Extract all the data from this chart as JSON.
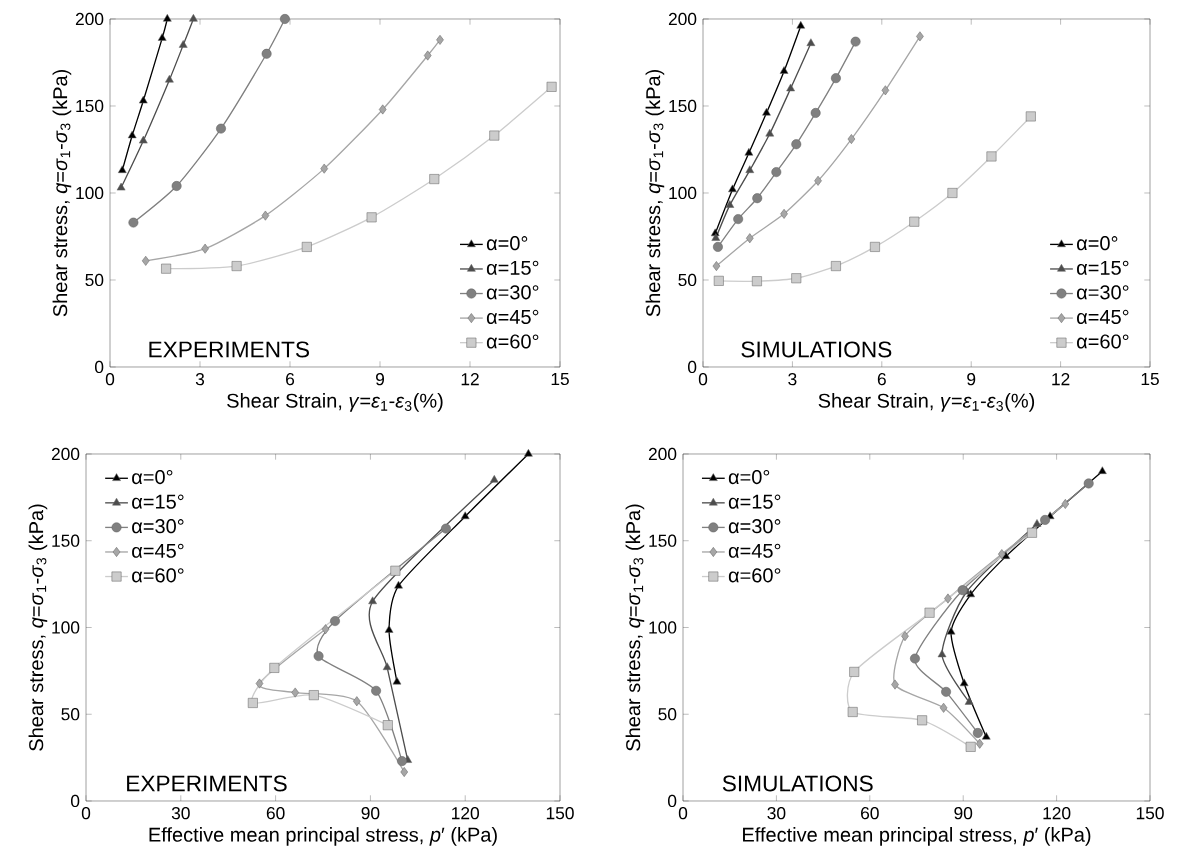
{
  "chart_data": [
    {
      "type": "line",
      "xlabel": "Shear Strain, *γ*=*ε*$_{1}$-*ε*$_{3}$(%)",
      "ylabel": "Shear stress, *q*=*σ*$_{1}$-*σ*$_{3}$ (kPa)",
      "xlim": [
        0,
        15
      ],
      "ylim": [
        0,
        200
      ],
      "xticks": [
        0,
        3,
        6,
        9,
        12,
        15
      ],
      "yticks": [
        0,
        50,
        100,
        150,
        200
      ],
      "legend": "bottom right",
      "annotations": [
        "EXPERIMENTS"
      ],
      "series": [
        {
          "name": "α=0°",
          "color": "#000000",
          "marker": "triangle",
          "x": [
            0.41,
            0.74,
            1.11,
            1.74,
            1.91
          ],
          "values": [
            113,
            133,
            153,
            189,
            200
          ]
        },
        {
          "name": "α=15°",
          "color": "#4d4d4d",
          "marker": "triangle",
          "x": [
            0.37,
            1.11,
            1.98,
            2.44,
            2.78
          ],
          "values": [
            103,
            130,
            165,
            185,
            200
          ]
        },
        {
          "name": "α=30°",
          "color": "#808080",
          "marker": "circle",
          "x": [
            0.78,
            2.22,
            3.7,
            5.22,
            5.83
          ],
          "values": [
            83,
            104,
            137,
            180,
            200
          ]
        },
        {
          "name": "α=45°",
          "color": "#a6a6a6",
          "marker": "diamond",
          "x": [
            1.19,
            3.17,
            5.18,
            7.14,
            9.09,
            10.59,
            11.0
          ],
          "values": [
            61,
            68,
            87,
            114,
            148,
            179,
            188
          ]
        },
        {
          "name": "α=60°",
          "color": "#cccccc",
          "marker": "square",
          "x": [
            1.87,
            4.22,
            6.56,
            8.72,
            10.81,
            12.81,
            14.72
          ],
          "values": [
            56.5,
            58,
            69,
            86,
            108,
            133,
            161
          ]
        }
      ]
    },
    {
      "type": "line",
      "xlabel": "Shear Strain, *γ*=*ε*$_{1}$-*ε*$_{3}$(%)",
      "ylabel": "Shear stress, *q*=*σ*$_{1}$-*σ*$_{3}$ (kPa)",
      "xlim": [
        0,
        15
      ],
      "ylim": [
        0,
        200
      ],
      "xticks": [
        0,
        3,
        6,
        9,
        12,
        15
      ],
      "yticks": [
        0,
        50,
        100,
        150,
        200
      ],
      "legend": "bottom right",
      "annotations": [
        "SIMULATIONS"
      ],
      "series": [
        {
          "name": "α=0°",
          "color": "#000000",
          "marker": "triangle",
          "x": [
            0.41,
            0.99,
            1.54,
            2.13,
            2.72,
            3.28
          ],
          "values": [
            76.7,
            102,
            123,
            146,
            170,
            196
          ]
        },
        {
          "name": "α=15°",
          "color": "#4d4d4d",
          "marker": "triangle",
          "x": [
            0.43,
            0.9,
            1.57,
            2.24,
            2.94,
            3.62
          ],
          "values": [
            74,
            93,
            113,
            134,
            160,
            186
          ]
        },
        {
          "name": "α=30°",
          "color": "#808080",
          "marker": "circle",
          "x": [
            0.5,
            1.18,
            1.82,
            2.46,
            3.13,
            3.78,
            4.46,
            5.12
          ],
          "values": [
            69,
            85,
            97,
            112,
            128,
            146,
            166,
            187
          ]
        },
        {
          "name": "α=45°",
          "color": "#a6a6a6",
          "marker": "diamond",
          "x": [
            0.45,
            1.57,
            2.72,
            3.86,
            4.98,
            6.12,
            7.28
          ],
          "values": [
            58,
            74,
            88,
            107,
            131,
            159,
            190
          ]
        },
        {
          "name": "α=60°",
          "color": "#cccccc",
          "marker": "square",
          "x": [
            0.53,
            1.81,
            3.13,
            4.46,
            5.77,
            7.09,
            8.37,
            9.68,
            11.0
          ],
          "values": [
            49.5,
            49.3,
            51,
            58,
            69,
            83.5,
            100,
            121,
            144
          ]
        }
      ]
    },
    {
      "type": "line",
      "xlabel": "Effective mean principal stress, *p*′ (kPa)",
      "ylabel": "Shear stress, *q*=*σ*$_{1}$-*σ*$_{3}$ (kPa)",
      "xlim": [
        0,
        150
      ],
      "ylim": [
        0,
        200
      ],
      "xticks": [
        0,
        30,
        60,
        90,
        120,
        150
      ],
      "yticks": [
        0,
        50,
        100,
        150,
        200
      ],
      "legend": "top left",
      "annotations": [
        "EXPERIMENTS"
      ],
      "series": [
        {
          "name": "α=0°",
          "color": "#000000",
          "marker": "triangle",
          "x": [
            98.4,
            95.9,
            98.9,
            120,
            140
          ],
          "values": [
            68.7,
            98.5,
            124,
            164,
            200
          ]
        },
        {
          "name": "α=15°",
          "color": "#4d4d4d",
          "marker": "triangle",
          "x": [
            101.8,
            95.3,
            90.7,
            129.2
          ],
          "values": [
            23.5,
            77,
            115,
            185
          ]
        },
        {
          "name": "α=30°",
          "color": "#808080",
          "marker": "circle",
          "x": [
            100,
            91.8,
            73.6,
            78.8,
            113.9
          ],
          "values": [
            23,
            63.5,
            83.5,
            103.7,
            157
          ]
        },
        {
          "name": "α=45°",
          "color": "#a6a6a6",
          "marker": "diamond",
          "x": [
            100.7,
            85.7,
            66.2,
            54.9,
            75.8
          ],
          "values": [
            16.7,
            57.5,
            62.5,
            67.7,
            99
          ]
        },
        {
          "name": "α=60°",
          "color": "#cccccc",
          "marker": "square",
          "x": [
            95.5,
            72.1,
            52.8,
            59.6,
            97.9
          ],
          "values": [
            43.7,
            61,
            56.5,
            76.7,
            132.7
          ]
        }
      ]
    },
    {
      "type": "line",
      "xlabel": "Effective mean principal stress, *p*′ (kPa)",
      "ylabel": "Shear stress, *q*=*σ*$_{1}$-*σ*$_{3}$ (kPa)",
      "xlim": [
        0,
        150
      ],
      "ylim": [
        0,
        200
      ],
      "xticks": [
        0,
        30,
        60,
        90,
        120,
        150
      ],
      "yticks": [
        0,
        50,
        100,
        150,
        200
      ],
      "legend": "top left",
      "annotations": [
        "SIMULATIONS"
      ],
      "series": [
        {
          "name": "α=0°",
          "color": "#000000",
          "marker": "triangle",
          "x": [
            97.4,
            90.3,
            86.1,
            92.4,
            103.7,
            117.9,
            134.7
          ],
          "values": [
            36.9,
            67.7,
            97.5,
            119,
            141,
            164,
            190
          ]
        },
        {
          "name": "α=15°",
          "color": "#4d4d4d",
          "marker": "triangle",
          "x": [
            91.9,
            83.2,
            91.1,
            113.7
          ],
          "values": [
            57,
            84.4,
            120.6,
            159.6
          ]
        },
        {
          "name": "α=30°",
          "color": "#808080",
          "marker": "circle",
          "x": [
            94.7,
            84.5,
            74.5,
            89.8,
            116.3,
            130.3
          ],
          "values": [
            39.2,
            62.9,
            82.1,
            121.5,
            162,
            183
          ]
        },
        {
          "name": "α=45°",
          "color": "#a6a6a6",
          "marker": "diamond",
          "x": [
            95.3,
            83.7,
            68.1,
            71.3,
            85.1,
            102.4,
            122.8
          ],
          "values": [
            33,
            53.7,
            67.1,
            95,
            116.7,
            142.3,
            171.2
          ]
        },
        {
          "name": "α=60°",
          "color": "#cccccc",
          "marker": "square",
          "x": [
            92.4,
            76.8,
            54.5,
            55,
            79.2,
            112.1
          ],
          "values": [
            31.2,
            46.5,
            51.3,
            74.4,
            108.5,
            154.6
          ]
        }
      ]
    }
  ]
}
